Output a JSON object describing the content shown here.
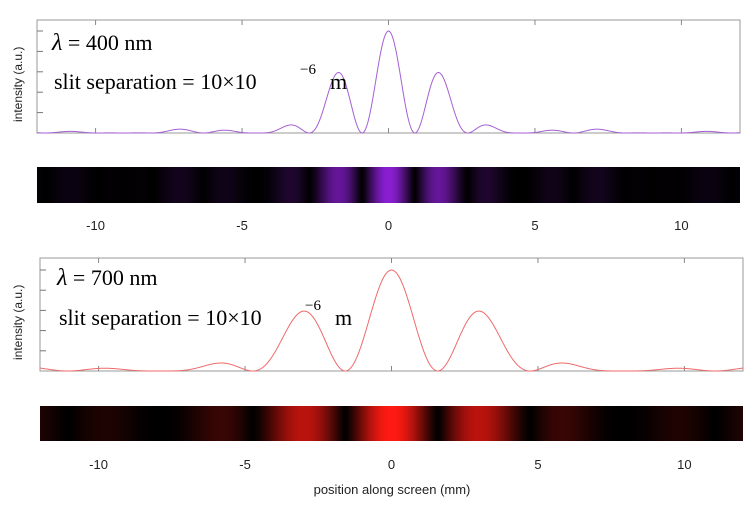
{
  "chart_data": [
    {
      "type": "line",
      "wavelength_nm": 400,
      "lambda_symbol": "λ",
      "lambda_text": " = 400 nm",
      "slit_text": "slit separation = 10×10",
      "slit_exponent": "−6",
      "slit_unit": "m",
      "ylabel": "intensity  (a.u.)",
      "xlabel": "",
      "xlim": [
        -12,
        12
      ],
      "xticks": [
        -10,
        -5,
        0,
        5,
        10
      ],
      "xtick_labels": [
        "-10",
        "-5",
        "0",
        "5",
        "10"
      ],
      "series": [
        {
          "color": "#a55fd4"
        }
      ],
      "strip_color": "#8a1ed2"
    },
    {
      "type": "line",
      "wavelength_nm": 700,
      "lambda_symbol": "λ",
      "lambda_text": " = 700 nm",
      "slit_text": "slit separation = 10×10",
      "slit_exponent": "−6",
      "slit_unit": "m",
      "ylabel": "intensity  (a.u.)",
      "xlabel": "position along screen (mm)",
      "xlim": [
        -12,
        12
      ],
      "xticks": [
        -10,
        -5,
        0,
        5,
        10
      ],
      "xtick_labels": [
        "-10",
        "-5",
        "0",
        "5",
        "10"
      ],
      "series": [
        {
          "color": "#ee6a6a"
        }
      ],
      "strip_color": "#ff1a12"
    }
  ]
}
